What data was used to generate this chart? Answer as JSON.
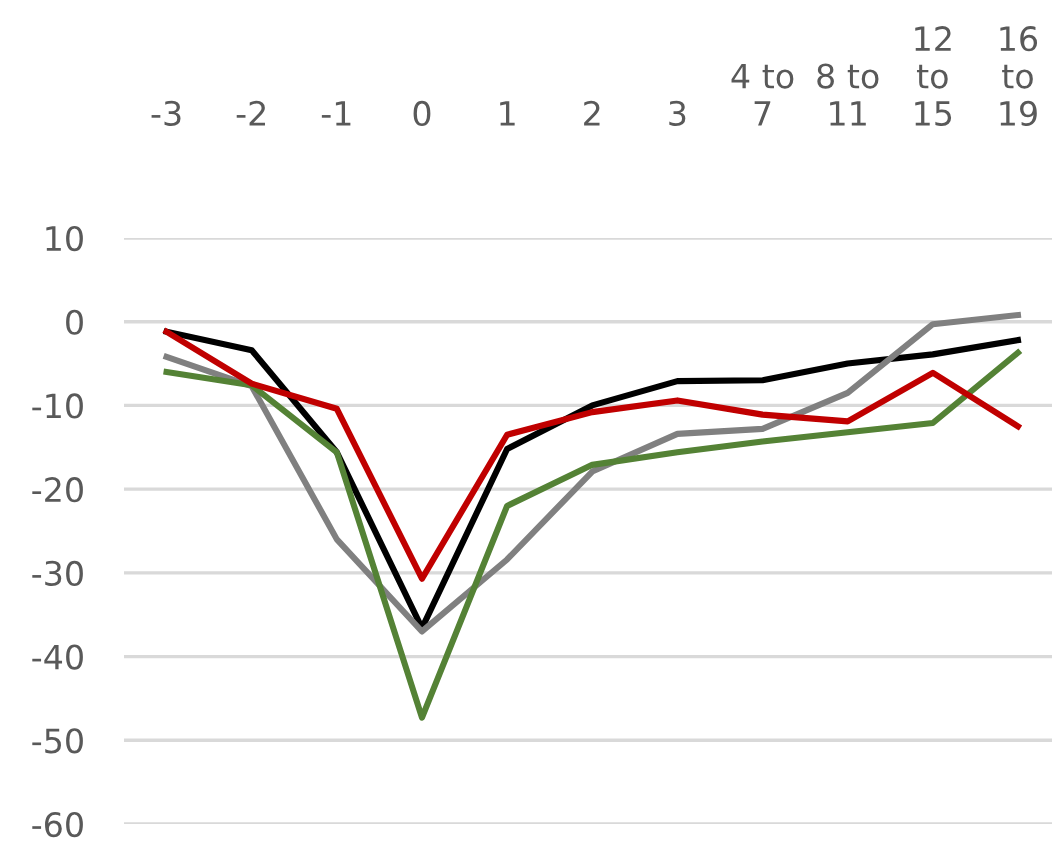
{
  "chart_data": {
    "type": "line",
    "categories": [
      "-3",
      "-2",
      "-1",
      "0",
      "1",
      "2",
      "3",
      "4 to 7",
      "8 to 11",
      "12 to 15",
      "16 to 19"
    ],
    "series": [
      {
        "color": "#000000",
        "values": [
          -1.2,
          -3.4,
          -15.6,
          -36.6,
          -15.2,
          -10.0,
          -7.1,
          -7.0,
          -5.0,
          -3.9,
          -2.2
        ]
      },
      {
        "color": "#808080",
        "values": [
          -4.2,
          -7.7,
          -26.0,
          -37.0,
          -28.4,
          -17.9,
          -13.4,
          -12.8,
          -8.5,
          -0.3,
          0.8
        ]
      },
      {
        "color": "#548235",
        "values": [
          -6.0,
          -7.6,
          -15.6,
          -47.3,
          -22.0,
          -17.1,
          -15.6,
          -14.3,
          -13.2,
          -12.1,
          -3.7
        ]
      },
      {
        "color": "#c00000",
        "values": [
          -1.2,
          -7.4,
          -10.4,
          -30.7,
          -13.5,
          -10.8,
          -9.4,
          -11.1,
          -11.9,
          -6.1,
          -12.5
        ]
      }
    ],
    "ylim": [
      -60,
      10
    ],
    "yticks": [
      -60,
      -50,
      -40,
      -30,
      -20,
      -10,
      0,
      10
    ],
    "grid": "y",
    "marker": "none",
    "line_style": "solid"
  }
}
